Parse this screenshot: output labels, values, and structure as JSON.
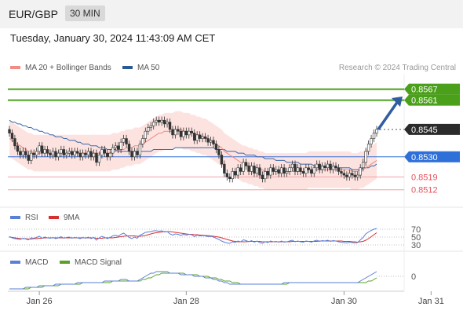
{
  "header": {
    "pair": "EUR/GBP",
    "timeframe": "30 MIN"
  },
  "timestamp": "Tuesday, January 30, 2024 11:43:09 AM CET",
  "legend": {
    "ma20": {
      "label": "MA 20 + Bollinger Bands",
      "color": "#f08c84"
    },
    "ma50": {
      "label": "MA 50",
      "color": "#2a5a94"
    }
  },
  "credit": "Research © 2024 Trading Central",
  "rsi_legend": {
    "rsi": {
      "label": "RSI",
      "color": "#5a7fd6"
    },
    "ma9": {
      "label": "9MA",
      "color": "#d83030"
    }
  },
  "macd_legend": {
    "macd": {
      "label": "MACD",
      "color": "#5a7fd6"
    },
    "signal": {
      "label": "MACD Signal",
      "color": "#5aa02a"
    }
  },
  "chart_data": {
    "type": "candlestick",
    "ylim": [
      0.8505,
      0.8575
    ],
    "x_ticks": [
      "Jan 26",
      "Jan 28",
      "Jan 30",
      "Jan 31"
    ],
    "levels": [
      {
        "value": 0.8567,
        "label": "0.8567",
        "kind": "resistance",
        "color": "#4aa01a"
      },
      {
        "value": 0.8561,
        "label": "0.8561",
        "kind": "resistance",
        "color": "#4aa01a"
      },
      {
        "value": 0.8545,
        "label": "0.8545",
        "kind": "last",
        "color": "#2b2b2b"
      },
      {
        "value": 0.853,
        "label": "0.8530",
        "kind": "pivot",
        "color": "#2e6fd8"
      },
      {
        "value": 0.8519,
        "label": "0.8519",
        "kind": "support",
        "color": "#e8505b"
      },
      {
        "value": 0.8512,
        "label": "0.8512",
        "kind": "support",
        "color": "#e8505b"
      }
    ],
    "close": [
      0.8543,
      0.854,
      0.8536,
      0.8533,
      0.8531,
      0.8533,
      0.8531,
      0.8528,
      0.8532,
      0.8531,
      0.8533,
      0.8536,
      0.8532,
      0.8534,
      0.8532,
      0.8531,
      0.8533,
      0.853,
      0.8532,
      0.8534,
      0.8531,
      0.8532,
      0.8533,
      0.8531,
      0.8533,
      0.8532,
      0.853,
      0.8532,
      0.8531,
      0.8533,
      0.853,
      0.8532,
      0.8527,
      0.8531,
      0.8534,
      0.8532,
      0.853,
      0.8532,
      0.8535,
      0.8536,
      0.8534,
      0.8538,
      0.854,
      0.8537,
      0.8533,
      0.853,
      0.8533,
      0.8531,
      0.8537,
      0.854,
      0.8544,
      0.8546,
      0.8547,
      0.8549,
      0.855,
      0.8549,
      0.855,
      0.8548,
      0.8549,
      0.8545,
      0.8542,
      0.8545,
      0.8544,
      0.8541,
      0.8544,
      0.8542,
      0.8544,
      0.8543,
      0.8539,
      0.8542,
      0.854,
      0.8541,
      0.854,
      0.8538,
      0.8539,
      0.8537,
      0.8534,
      0.8531,
      0.8526,
      0.8521,
      0.8519,
      0.8518,
      0.8522,
      0.852,
      0.8524,
      0.8522,
      0.8527,
      0.8525,
      0.8522,
      0.8525,
      0.8521,
      0.8524,
      0.852,
      0.8518,
      0.8522,
      0.852,
      0.8524,
      0.8522,
      0.8523,
      0.8521,
      0.8524,
      0.8521,
      0.8522,
      0.8524,
      0.8526,
      0.8522,
      0.8524,
      0.8522,
      0.8521,
      0.8524,
      0.8523,
      0.8521,
      0.8524,
      0.8526,
      0.8523,
      0.8525,
      0.8524,
      0.8526,
      0.8523,
      0.8525,
      0.8524,
      0.8522,
      0.8521,
      0.852,
      0.8519,
      0.8521,
      0.852,
      0.8519,
      0.852,
      0.8524,
      0.8527,
      0.8533,
      0.8537,
      0.854,
      0.8543,
      0.8545
    ],
    "ma20": [
      0.854,
      0.8539,
      0.8538,
      0.8537,
      0.8536,
      0.8535,
      0.8534,
      0.8533,
      0.8533,
      0.8532,
      0.8532,
      0.8532,
      0.8532,
      0.8532,
      0.8532,
      0.8532,
      0.8532,
      0.8532,
      0.8532,
      0.8532,
      0.8532,
      0.8532,
      0.8532,
      0.8532,
      0.8532,
      0.8532,
      0.8532,
      0.8532,
      0.8532,
      0.8532,
      0.8532,
      0.8532,
      0.8532,
      0.8532,
      0.8532,
      0.8532,
      0.8532,
      0.8532,
      0.8533,
      0.8533,
      0.8533,
      0.8534,
      0.8534,
      0.8535,
      0.8535,
      0.8535,
      0.8536,
      0.8536,
      0.8536,
      0.8537,
      0.8538,
      0.8539,
      0.854,
      0.8541,
      0.8542,
      0.8543,
      0.8543,
      0.8544,
      0.8544,
      0.8544,
      0.8544,
      0.8545,
      0.8545,
      0.8545,
      0.8544,
      0.8544,
      0.8544,
      0.8543,
      0.8543,
      0.8542,
      0.8542,
      0.8541,
      0.8541,
      0.854,
      0.8539,
      0.8538,
      0.8537,
      0.8536,
      0.8535,
      0.8533,
      0.8532,
      0.8531,
      0.853,
      0.8529,
      0.8528,
      0.8527,
      0.8526,
      0.8526,
      0.8525,
      0.8525,
      0.8524,
      0.8524,
      0.8523,
      0.8523,
      0.8522,
      0.8522,
      0.8522,
      0.8522,
      0.8522,
      0.8522,
      0.8522,
      0.8522,
      0.8522,
      0.8522,
      0.8522,
      0.8522,
      0.8522,
      0.8522,
      0.8522,
      0.8522,
      0.8523,
      0.8523,
      0.8523,
      0.8523,
      0.8523,
      0.8523,
      0.8523,
      0.8523,
      0.8523,
      0.8523,
      0.8523,
      0.8523,
      0.8523,
      0.8523,
      0.8523,
      0.8523,
      0.8522,
      0.8522,
      0.8522,
      0.8523,
      0.8523,
      0.8524,
      0.8525,
      0.8526,
      0.8527,
      0.8528
    ],
    "ma50": [
      0.855,
      0.8549,
      0.8549,
      0.8548,
      0.8548,
      0.8547,
      0.8547,
      0.8546,
      0.8546,
      0.8545,
      0.8545,
      0.8544,
      0.8544,
      0.8543,
      0.8543,
      0.8542,
      0.8542,
      0.8541,
      0.8541,
      0.8541,
      0.854,
      0.854,
      0.8539,
      0.8539,
      0.8539,
      0.8538,
      0.8538,
      0.8537,
      0.8537,
      0.8537,
      0.8536,
      0.8536,
      0.8536,
      0.8535,
      0.8535,
      0.8535,
      0.8534,
      0.8534,
      0.8534,
      0.8534,
      0.8533,
      0.8533,
      0.8533,
      0.8533,
      0.8533,
      0.8533,
      0.8533,
      0.8533,
      0.8533,
      0.8533,
      0.8533,
      0.8533,
      0.8533,
      0.8534,
      0.8534,
      0.8534,
      0.8534,
      0.8534,
      0.8534,
      0.8534,
      0.8534,
      0.8535,
      0.8535,
      0.8535,
      0.8535,
      0.8535,
      0.8535,
      0.8535,
      0.8535,
      0.8535,
      0.8535,
      0.8535,
      0.8535,
      0.8535,
      0.8535,
      0.8535,
      0.8534,
      0.8534,
      0.8534,
      0.8534,
      0.8533,
      0.8533,
      0.8533,
      0.8533,
      0.8532,
      0.8532,
      0.8532,
      0.8531,
      0.8531,
      0.8531,
      0.8531,
      0.853,
      0.853,
      0.853,
      0.8529,
      0.8529,
      0.8529,
      0.8529,
      0.8528,
      0.8528,
      0.8528,
      0.8528,
      0.8527,
      0.8527,
      0.8527,
      0.8527,
      0.8527,
      0.8526,
      0.8526,
      0.8526,
      0.8526,
      0.8526,
      0.8525,
      0.8525,
      0.8525,
      0.8525,
      0.8525,
      0.8525,
      0.8524,
      0.8524,
      0.8524,
      0.8524,
      0.8524,
      0.8524,
      0.8524,
      0.8524,
      0.8523,
      0.8523,
      0.8523,
      0.8523,
      0.8524,
      0.8524,
      0.8524,
      0.8525,
      0.8525,
      0.8526
    ],
    "bb_width": 0.001,
    "arrow": {
      "from_value": 0.8545,
      "to_value": 0.8563
    },
    "rsi": {
      "levels": [
        {
          "value": 70,
          "label": "70"
        },
        {
          "value": 50,
          "label": "50"
        },
        {
          "value": 30,
          "label": "30"
        }
      ],
      "ylim": [
        20,
        80
      ],
      "rsi": [
        52,
        48,
        46,
        45,
        44,
        47,
        45,
        43,
        48,
        47,
        49,
        52,
        47,
        50,
        48,
        47,
        49,
        46,
        48,
        51,
        47,
        49,
        50,
        47,
        49,
        48,
        46,
        49,
        47,
        50,
        46,
        49,
        42,
        48,
        52,
        49,
        46,
        49,
        53,
        55,
        52,
        57,
        60,
        55,
        49,
        46,
        50,
        47,
        55,
        58,
        62,
        63,
        64,
        66,
        66,
        65,
        66,
        63,
        64,
        58,
        55,
        58,
        57,
        54,
        57,
        55,
        57,
        56,
        51,
        55,
        53,
        54,
        53,
        51,
        52,
        50,
        47,
        44,
        40,
        37,
        35,
        34,
        38,
        36,
        40,
        38,
        43,
        41,
        38,
        41,
        37,
        40,
        36,
        34,
        38,
        36,
        40,
        38,
        39,
        37,
        40,
        37,
        38,
        40,
        42,
        38,
        40,
        38,
        37,
        40,
        39,
        37,
        40,
        42,
        39,
        41,
        40,
        42,
        39,
        41,
        40,
        38,
        37,
        36,
        35,
        37,
        36,
        35,
        36,
        43,
        49,
        58,
        63,
        67,
        70,
        72
      ],
      "ma9": [
        50,
        49,
        48,
        47,
        46,
        46,
        46,
        45,
        45,
        46,
        46,
        47,
        47,
        48,
        48,
        48,
        48,
        48,
        48,
        48,
        48,
        48,
        48,
        48,
        48,
        48,
        48,
        48,
        48,
        48,
        48,
        48,
        47,
        47,
        47,
        48,
        48,
        48,
        48,
        49,
        50,
        51,
        52,
        53,
        53,
        53,
        53,
        52,
        52,
        53,
        54,
        56,
        58,
        60,
        61,
        62,
        63,
        64,
        64,
        64,
        63,
        62,
        61,
        60,
        59,
        58,
        57,
        57,
        56,
        56,
        55,
        55,
        54,
        54,
        53,
        52,
        51,
        50,
        48,
        46,
        44,
        42,
        40,
        39,
        38,
        38,
        38,
        38,
        39,
        39,
        39,
        39,
        39,
        38,
        38,
        38,
        38,
        38,
        38,
        38,
        38,
        38,
        38,
        38,
        39,
        39,
        39,
        39,
        39,
        39,
        39,
        39,
        39,
        39,
        40,
        40,
        40,
        40,
        40,
        40,
        40,
        40,
        40,
        39,
        39,
        39,
        38,
        38,
        37,
        38,
        39,
        42,
        46,
        51,
        56,
        61
      ]
    },
    "macd": {
      "levels": [
        {
          "value": 0,
          "label": "0"
        }
      ],
      "ylim": [
        -0.001,
        0.0006
      ],
      "macd": [
        -0.0008,
        -0.0008,
        -0.0008,
        -0.0008,
        -0.0008,
        -0.0008,
        -0.0007,
        -0.0007,
        -0.0007,
        -0.0007,
        -0.0007,
        -0.0006,
        -0.0006,
        -0.0006,
        -0.0006,
        -0.0006,
        -0.0006,
        -0.0005,
        -0.0005,
        -0.0005,
        -0.0005,
        -0.0005,
        -0.0005,
        -0.0005,
        -0.0005,
        -0.0004,
        -0.0004,
        -0.0004,
        -0.0004,
        -0.0004,
        -0.0004,
        -0.0004,
        -0.0004,
        -0.0004,
        -0.0004,
        -0.0003,
        -0.0003,
        -0.0003,
        -0.0003,
        -0.0003,
        -0.0003,
        -0.0002,
        -0.0002,
        -0.0002,
        -0.0003,
        -0.0003,
        -0.0003,
        -0.0003,
        -0.0002,
        -0.0001,
        0.0,
        0.0001,
        0.0002,
        0.0002,
        0.0003,
        0.0003,
        0.0003,
        0.0003,
        0.0003,
        0.0002,
        0.0002,
        0.0002,
        0.0002,
        0.0001,
        0.0001,
        0.0001,
        0.0001,
        0.0001,
        0.0,
        0.0,
        0.0,
        0.0,
        -0.0001,
        -0.0001,
        -0.0001,
        -0.0002,
        -0.0002,
        -0.0003,
        -0.0003,
        -0.0004,
        -0.0004,
        -0.0005,
        -0.0005,
        -0.0005,
        -0.0005,
        -0.0005,
        -0.0005,
        -0.0005,
        -0.0005,
        -0.0005,
        -0.0005,
        -0.0005,
        -0.0005,
        -0.0005,
        -0.0005,
        -0.0005,
        -0.0005,
        -0.0005,
        -0.0005,
        -0.0005,
        -0.0005,
        -0.0004,
        -0.0004,
        -0.0004,
        -0.0004,
        -0.0004,
        -0.0004,
        -0.0004,
        -0.0004,
        -0.0004,
        -0.0004,
        -0.0004,
        -0.0004,
        -0.0004,
        -0.0004,
        -0.0004,
        -0.0004,
        -0.0004,
        -0.0004,
        -0.0004,
        -0.0004,
        -0.0004,
        -0.0004,
        -0.0004,
        -0.0004,
        -0.0004,
        -0.0004,
        -0.0004,
        -0.0004,
        -0.0003,
        -0.0002,
        -0.0001,
        0.0,
        0.0001,
        0.0002,
        0.0003
      ],
      "signal": [
        -0.0008,
        -0.0008,
        -0.0008,
        -0.0008,
        -0.0008,
        -0.0008,
        -0.0008,
        -0.0008,
        -0.0007,
        -0.0007,
        -0.0007,
        -0.0007,
        -0.0007,
        -0.0006,
        -0.0006,
        -0.0006,
        -0.0006,
        -0.0006,
        -0.0006,
        -0.0005,
        -0.0005,
        -0.0005,
        -0.0005,
        -0.0005,
        -0.0005,
        -0.0005,
        -0.0005,
        -0.0004,
        -0.0004,
        -0.0004,
        -0.0004,
        -0.0004,
        -0.0004,
        -0.0004,
        -0.0004,
        -0.0004,
        -0.0004,
        -0.0004,
        -0.0003,
        -0.0003,
        -0.0003,
        -0.0003,
        -0.0003,
        -0.0003,
        -0.0003,
        -0.0003,
        -0.0003,
        -0.0003,
        -0.0003,
        -0.0002,
        -0.0002,
        -0.0001,
        -0.0001,
        0.0,
        0.0001,
        0.0001,
        0.0002,
        0.0002,
        0.0002,
        0.0002,
        0.0002,
        0.0002,
        0.0002,
        0.0002,
        0.0002,
        0.0001,
        0.0001,
        0.0001,
        0.0001,
        0.0001,
        0.0,
        0.0,
        0.0,
        0.0,
        -0.0001,
        -0.0001,
        -0.0001,
        -0.0002,
        -0.0002,
        -0.0003,
        -0.0003,
        -0.0003,
        -0.0004,
        -0.0004,
        -0.0004,
        -0.0005,
        -0.0005,
        -0.0005,
        -0.0005,
        -0.0005,
        -0.0005,
        -0.0005,
        -0.0005,
        -0.0005,
        -0.0005,
        -0.0005,
        -0.0005,
        -0.0005,
        -0.0005,
        -0.0005,
        -0.0005,
        -0.0005,
        -0.0005,
        -0.0004,
        -0.0004,
        -0.0004,
        -0.0004,
        -0.0004,
        -0.0004,
        -0.0004,
        -0.0004,
        -0.0004,
        -0.0004,
        -0.0004,
        -0.0004,
        -0.0004,
        -0.0004,
        -0.0004,
        -0.0004,
        -0.0004,
        -0.0004,
        -0.0004,
        -0.0004,
        -0.0004,
        -0.0004,
        -0.0004,
        -0.0004,
        -0.0004,
        -0.0004,
        -0.0004,
        -0.0004,
        -0.0004,
        -0.0003,
        -0.0003,
        -0.0002,
        -0.0001
      ]
    }
  }
}
